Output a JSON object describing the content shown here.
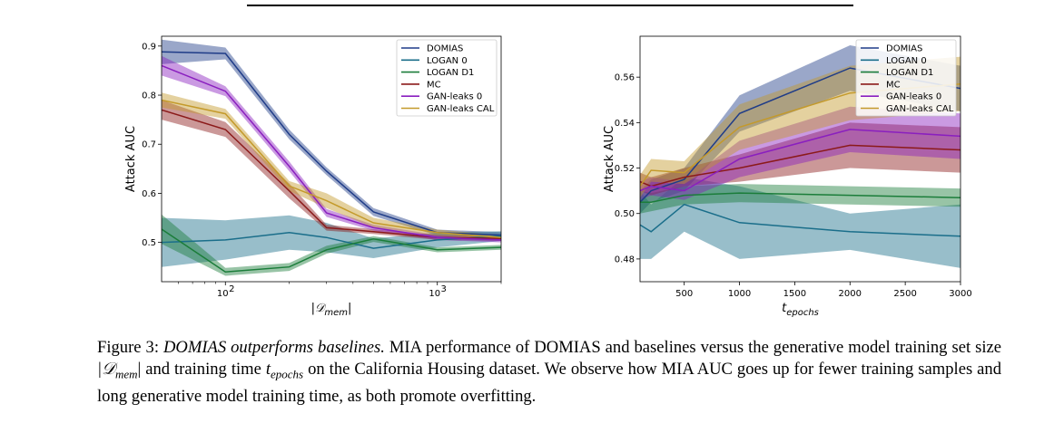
{
  "chart_data": [
    {
      "type": "line",
      "xscale": "log",
      "xlabel": "|𝒟",
      "xlabel_sub": "mem",
      "ylabel": "Attack AUC",
      "xlim": [
        50,
        2000
      ],
      "ylim": [
        0.42,
        0.92
      ],
      "xticks": [
        {
          "v": 100,
          "base": "10",
          "exp": "2"
        },
        {
          "v": 1000,
          "base": "10",
          "exp": "3"
        }
      ],
      "yticks": [
        {
          "v": 0.5,
          "label": "0.5"
        },
        {
          "v": 0.6,
          "label": "0.6"
        },
        {
          "v": 0.7,
          "label": "0.7"
        },
        {
          "v": 0.8,
          "label": "0.8"
        },
        {
          "v": 0.9,
          "label": "0.9"
        }
      ],
      "legend_position": "top-right",
      "x": [
        50,
        100,
        200,
        300,
        500,
        1000,
        2000
      ],
      "series": [
        {
          "name": "DOMIAS",
          "color": "#1f3c88",
          "values": [
            0.888,
            0.885,
            0.72,
            0.645,
            0.562,
            0.52,
            0.515
          ],
          "band": [
            0.025,
            0.012,
            0.01,
            0.008,
            0.008,
            0.006,
            0.006
          ]
        },
        {
          "name": "LOGAN 0",
          "color": "#1a6e8a",
          "values": [
            0.5,
            0.505,
            0.52,
            0.51,
            0.488,
            0.505,
            0.513
          ],
          "band": [
            0.05,
            0.04,
            0.035,
            0.03,
            0.02,
            0.015,
            0.01
          ]
        },
        {
          "name": "LOGAN D1",
          "color": "#1b7d3a",
          "values": [
            0.527,
            0.44,
            0.45,
            0.485,
            0.507,
            0.485,
            0.49
          ],
          "band": [
            0.03,
            0.008,
            0.008,
            0.008,
            0.006,
            0.005,
            0.005
          ]
        },
        {
          "name": "MC",
          "color": "#8b1a1a",
          "values": [
            0.77,
            0.73,
            0.605,
            0.53,
            0.522,
            0.51,
            0.508
          ],
          "band": [
            0.02,
            0.015,
            0.015,
            0.006,
            0.005,
            0.005,
            0.005
          ]
        },
        {
          "name": "GAN-leaks 0",
          "color": "#8a1fbf",
          "values": [
            0.86,
            0.808,
            0.655,
            0.56,
            0.53,
            0.51,
            0.505
          ],
          "band": [
            0.02,
            0.01,
            0.01,
            0.008,
            0.006,
            0.005,
            0.005
          ]
        },
        {
          "name": "GAN-leaks CAL",
          "color": "#c49a2b",
          "values": [
            0.79,
            0.762,
            0.615,
            0.585,
            0.54,
            0.52,
            0.51
          ],
          "band": [
            0.015,
            0.01,
            0.01,
            0.015,
            0.01,
            0.006,
            0.005
          ]
        }
      ]
    },
    {
      "type": "line",
      "xscale": "linear",
      "xlabel": "t",
      "xlabel_sub": "epochs",
      "ylabel": "Attack AUC",
      "xlim": [
        100,
        3000
      ],
      "ylim": [
        0.47,
        0.578
      ],
      "xticks": [
        {
          "v": 500,
          "label": "500"
        },
        {
          "v": 1000,
          "label": "1000"
        },
        {
          "v": 1500,
          "label": "1500"
        },
        {
          "v": 2000,
          "label": "2000"
        },
        {
          "v": 2500,
          "label": "2500"
        },
        {
          "v": 3000,
          "label": "3000"
        }
      ],
      "yticks": [
        {
          "v": 0.48,
          "label": "0.48"
        },
        {
          "v": 0.5,
          "label": "0.50"
        },
        {
          "v": 0.52,
          "label": "0.52"
        },
        {
          "v": 0.54,
          "label": "0.54"
        },
        {
          "v": 0.56,
          "label": "0.56"
        }
      ],
      "legend_position": "top-right",
      "x": [
        100,
        200,
        500,
        1000,
        2000,
        3000
      ],
      "series": [
        {
          "name": "DOMIAS",
          "color": "#1f3c88",
          "values": [
            0.505,
            0.51,
            0.515,
            0.544,
            0.564,
            0.555
          ],
          "band": [
            0.005,
            0.005,
            0.005,
            0.008,
            0.01,
            0.01
          ]
        },
        {
          "name": "LOGAN 0",
          "color": "#1a6e8a",
          "values": [
            0.495,
            0.492,
            0.504,
            0.496,
            0.492,
            0.49
          ],
          "band": [
            0.015,
            0.012,
            0.012,
            0.016,
            0.008,
            0.014
          ]
        },
        {
          "name": "LOGAN D1",
          "color": "#1b7d3a",
          "values": [
            0.505,
            0.505,
            0.508,
            0.509,
            0.508,
            0.507
          ],
          "band": [
            0.005,
            0.004,
            0.004,
            0.004,
            0.004,
            0.004
          ]
        },
        {
          "name": "MC",
          "color": "#8b1a1a",
          "values": [
            0.514,
            0.512,
            0.516,
            0.52,
            0.53,
            0.528
          ],
          "band": [
            0.004,
            0.004,
            0.004,
            0.006,
            0.01,
            0.01
          ]
        },
        {
          "name": "GAN-leaks 0",
          "color": "#8a1fbf",
          "values": [
            0.51,
            0.512,
            0.51,
            0.524,
            0.537,
            0.534
          ],
          "band": [
            0.004,
            0.004,
            0.004,
            0.008,
            0.01,
            0.01
          ]
        },
        {
          "name": "GAN-leaks CAL",
          "color": "#c49a2b",
          "values": [
            0.512,
            0.519,
            0.518,
            0.538,
            0.553,
            0.557
          ],
          "band": [
            0.005,
            0.005,
            0.005,
            0.01,
            0.012,
            0.012
          ]
        }
      ]
    }
  ],
  "caption": {
    "label": "Figure 3: ",
    "title": "DOMIAS outperforms baselines.",
    "text_1": " MIA performance of DOMIAS and baselines versus the generative model training set size ",
    "dmem": "|𝒟",
    "dmem_sub": "mem",
    "dmem_close": "|",
    "text_2": " and training time ",
    "t": "t",
    "t_sub": "epochs",
    "text_3": " on the California Housing dataset. We observe how MIA AUC goes up for fewer training samples and long generative model training time, as both promote overfitting."
  }
}
